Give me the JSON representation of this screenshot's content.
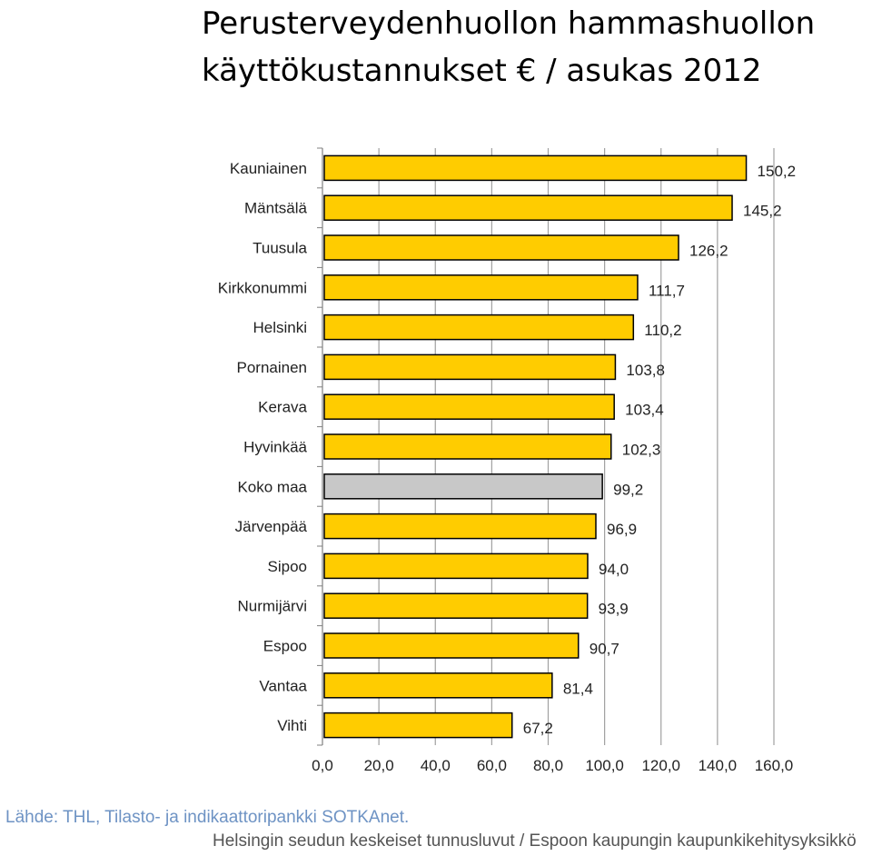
{
  "title": {
    "line1": "Perusterveydenhuollon hammashuollon",
    "line2": "käyttökustannukset € / asukas 2012"
  },
  "source": "Lähde: THL, Tilasto- ja indikaattoripankki SOTKAnet.",
  "footer": "Helsingin seudun keskeiset tunnusluvut / Espoon kaupungin kaupunkikehitysyksikkö",
  "colors": {
    "bar": "#ffcc00",
    "highlight": "#c8c8c8",
    "stroke": "#000000",
    "grid": "#a0a0a0"
  },
  "chart_data": {
    "type": "bar",
    "orientation": "horizontal",
    "categories": [
      "Kauniainen",
      "Mäntsälä",
      "Tuusula",
      "Kirkkonummi",
      "Helsinki",
      "Pornainen",
      "Kerava",
      "Hyvinkää",
      "Koko maa",
      "Järvenpää",
      "Sipoo",
      "Nurmijärvi",
      "Espoo",
      "Vantaa",
      "Vihti"
    ],
    "values": [
      150.2,
      145.2,
      126.2,
      111.7,
      110.2,
      103.8,
      103.4,
      102.3,
      99.2,
      96.9,
      94.0,
      93.9,
      90.7,
      81.4,
      67.2
    ],
    "value_labels": [
      "150,2",
      "145,2",
      "126,2",
      "111,7",
      "110,2",
      "103,8",
      "103,4",
      "102,3",
      "99,2",
      "96,9",
      "94,0",
      "93,9",
      "90,7",
      "81,4",
      "67,2"
    ],
    "highlight_category": "Koko maa",
    "xlim": [
      0,
      160
    ],
    "xticks": [
      0,
      20,
      40,
      60,
      80,
      100,
      120,
      140,
      160
    ],
    "xtick_labels": [
      "0,0",
      "20,0",
      "40,0",
      "60,0",
      "80,0",
      "100,0",
      "120,0",
      "140,0",
      "160,0"
    ],
    "grid": true,
    "legend": "none"
  }
}
